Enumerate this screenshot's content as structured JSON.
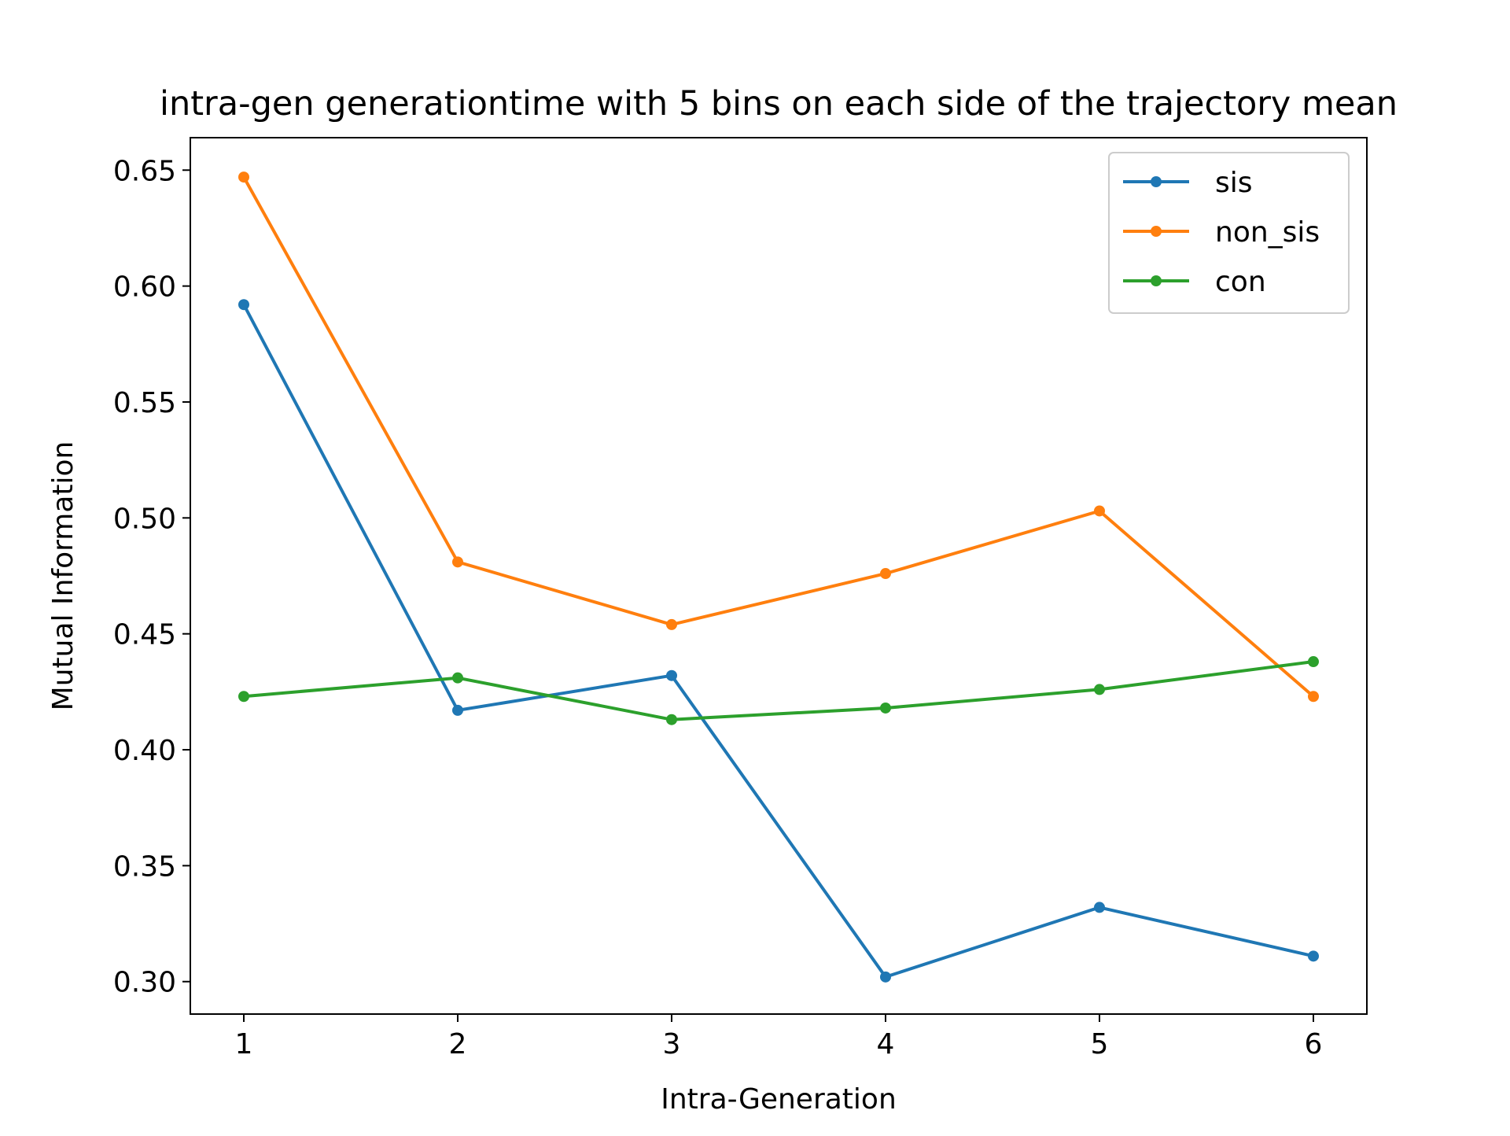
{
  "chart_data": {
    "type": "line",
    "title": "intra-gen generationtime with 5 bins on each side of the trajectory mean",
    "xlabel": "Intra-Generation",
    "ylabel": "Mutual Information",
    "x": [
      1,
      2,
      3,
      4,
      5,
      6
    ],
    "xlim": [
      0.75,
      6.25
    ],
    "ylim": [
      0.286,
      0.664
    ],
    "x_ticks": [
      {
        "value": 1,
        "label": "1"
      },
      {
        "value": 2,
        "label": "2"
      },
      {
        "value": 3,
        "label": "3"
      },
      {
        "value": 4,
        "label": "4"
      },
      {
        "value": 5,
        "label": "5"
      },
      {
        "value": 6,
        "label": "6"
      }
    ],
    "y_ticks": [
      {
        "value": 0.3,
        "label": "0.30"
      },
      {
        "value": 0.35,
        "label": "0.35"
      },
      {
        "value": 0.4,
        "label": "0.40"
      },
      {
        "value": 0.45,
        "label": "0.45"
      },
      {
        "value": 0.5,
        "label": "0.50"
      },
      {
        "value": 0.55,
        "label": "0.55"
      },
      {
        "value": 0.6,
        "label": "0.60"
      },
      {
        "value": 0.65,
        "label": "0.65"
      }
    ],
    "grid": false,
    "legend_position": "top-right",
    "series": [
      {
        "name": "sis",
        "color": "#1f77b4",
        "values": [
          0.592,
          0.417,
          0.432,
          0.302,
          0.332,
          0.311
        ]
      },
      {
        "name": "non_sis",
        "color": "#ff7f0e",
        "values": [
          0.647,
          0.481,
          0.454,
          0.476,
          0.503,
          0.423
        ]
      },
      {
        "name": "con",
        "color": "#2ca02c",
        "values": [
          0.423,
          0.431,
          0.413,
          0.418,
          0.426,
          0.438
        ]
      }
    ]
  }
}
